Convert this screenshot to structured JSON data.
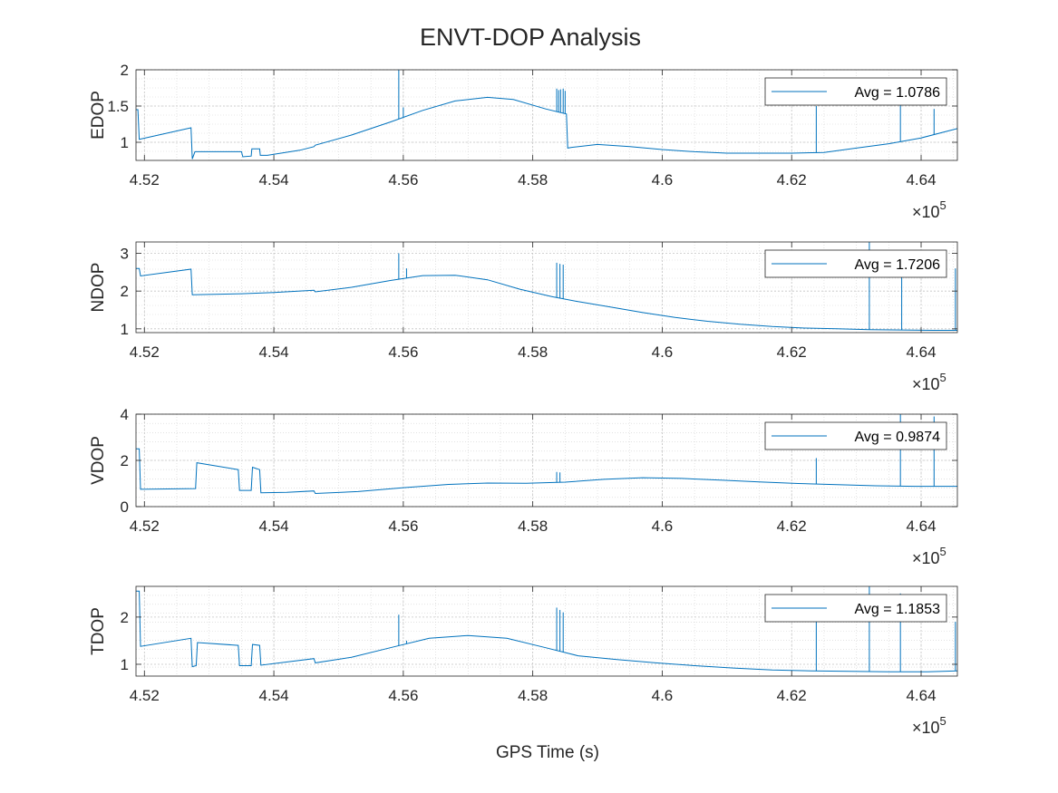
{
  "figure": {
    "title": "ENVT-DOP Analysis",
    "xlabel": "GPS Time (s)",
    "line_color": "#0072BD",
    "exponent_label": "×10",
    "exponent_power": "5"
  },
  "chart_data": [
    {
      "type": "line",
      "ylabel": "EDOP",
      "xlim": [
        451870,
        464560
      ],
      "ylim": [
        0.75,
        2.0
      ],
      "xticks": [
        452000,
        454000,
        456000,
        458000,
        460000,
        462000,
        464000
      ],
      "xtick_labels": [
        "4.52",
        "4.54",
        "4.56",
        "4.58",
        "4.6",
        "4.62",
        "4.64"
      ],
      "yticks": [
        1,
        1.5,
        2
      ],
      "ytick_labels": [
        "1",
        "1.5",
        "2"
      ],
      "grid": true,
      "legend_location": "top-right",
      "series": [
        {
          "name": "Avg = 1.0786"
        }
      ],
      "x": [
        451870,
        451900,
        451920,
        452720,
        452740,
        452780,
        453500,
        453520,
        453650,
        453660,
        453780,
        453790,
        453900,
        454400,
        454620,
        454640,
        455200,
        455800,
        456300,
        456800,
        457300,
        457700,
        458200,
        458520,
        458540,
        458600,
        459000,
        459500,
        460000,
        460500,
        461000,
        461500,
        462000,
        462500,
        463000,
        463500,
        464000,
        464560
      ],
      "y": [
        1.45,
        1.45,
        1.04,
        1.2,
        0.77,
        0.87,
        0.87,
        0.8,
        0.81,
        0.91,
        0.91,
        0.82,
        0.82,
        0.89,
        0.94,
        0.96,
        1.1,
        1.28,
        1.44,
        1.57,
        1.62,
        1.59,
        1.46,
        1.39,
        0.92,
        0.93,
        0.97,
        0.94,
        0.9,
        0.87,
        0.85,
        0.85,
        0.85,
        0.86,
        0.92,
        0.98,
        1.06,
        1.19
      ],
      "spikes": [
        {
          "x": 455930,
          "y": 2.05
        },
        {
          "x": 456000,
          "y": 1.48
        },
        {
          "x": 458370,
          "y": 1.74
        },
        {
          "x": 458400,
          "y": 1.72
        },
        {
          "x": 458430,
          "y": 1.73
        },
        {
          "x": 458470,
          "y": 1.74
        },
        {
          "x": 458500,
          "y": 1.71
        },
        {
          "x": 462380,
          "y": 1.5
        },
        {
          "x": 463680,
          "y": 1.52
        },
        {
          "x": 464200,
          "y": 1.46
        }
      ]
    },
    {
      "type": "line",
      "ylabel": "NDOP",
      "xlim": [
        451870,
        464560
      ],
      "ylim": [
        0.9,
        3.3
      ],
      "xticks": [
        452000,
        454000,
        456000,
        458000,
        460000,
        462000,
        464000
      ],
      "xtick_labels": [
        "4.52",
        "4.54",
        "4.56",
        "4.58",
        "4.6",
        "4.62",
        "4.64"
      ],
      "yticks": [
        1,
        2,
        3
      ],
      "ytick_labels": [
        "1",
        "2",
        "3"
      ],
      "grid": true,
      "legend_location": "top-right",
      "series": [
        {
          "name": "Avg = 1.7206"
        }
      ],
      "x": [
        451870,
        451920,
        451940,
        452720,
        452740,
        453500,
        454000,
        454620,
        454640,
        455200,
        455800,
        456300,
        456800,
        457300,
        457800,
        458300,
        458700,
        459200,
        459700,
        460200,
        460700,
        461200,
        461700,
        462200,
        462700,
        463200,
        463700,
        464200,
        464560
      ],
      "y": [
        2.6,
        2.6,
        2.4,
        2.58,
        1.9,
        1.93,
        1.96,
        2.02,
        1.98,
        2.1,
        2.28,
        2.41,
        2.42,
        2.3,
        2.05,
        1.85,
        1.72,
        1.58,
        1.43,
        1.3,
        1.2,
        1.12,
        1.06,
        1.02,
        1.0,
        0.98,
        0.97,
        0.96,
        0.96
      ],
      "spikes": [
        {
          "x": 455930,
          "y": 3.0
        },
        {
          "x": 456050,
          "y": 2.6
        },
        {
          "x": 458370,
          "y": 2.75
        },
        {
          "x": 458420,
          "y": 2.72
        },
        {
          "x": 458470,
          "y": 2.7
        },
        {
          "x": 463200,
          "y": 3.3
        },
        {
          "x": 463700,
          "y": 2.45
        },
        {
          "x": 464530,
          "y": 2.6
        }
      ]
    },
    {
      "type": "line",
      "ylabel": "VDOP",
      "xlim": [
        451870,
        464560
      ],
      "ylim": [
        0,
        4
      ],
      "xticks": [
        452000,
        454000,
        456000,
        458000,
        460000,
        462000,
        464000
      ],
      "xtick_labels": [
        "4.52",
        "4.54",
        "4.56",
        "4.58",
        "4.6",
        "4.62",
        "4.64"
      ],
      "yticks": [
        0,
        2,
        4
      ],
      "ytick_labels": [
        "0",
        "2",
        "4"
      ],
      "grid": true,
      "legend_location": "top-right",
      "series": [
        {
          "name": "Avg = 0.9874"
        }
      ],
      "x": [
        451870,
        451920,
        451940,
        452790,
        452810,
        453450,
        453470,
        453650,
        453670,
        453780,
        453800,
        454200,
        454620,
        454640,
        455300,
        456000,
        456700,
        457300,
        457900,
        458500,
        459100,
        459700,
        460300,
        460900,
        461500,
        462100,
        462700,
        463300,
        463900,
        464560
      ],
      "y": [
        2.5,
        2.5,
        0.75,
        0.78,
        1.9,
        1.6,
        0.7,
        0.7,
        1.7,
        1.6,
        0.6,
        0.62,
        0.68,
        0.57,
        0.65,
        0.82,
        0.96,
        1.02,
        1.01,
        1.06,
        1.18,
        1.25,
        1.22,
        1.15,
        1.07,
        1.0,
        0.95,
        0.9,
        0.88,
        0.88
      ],
      "spikes": [
        {
          "x": 458370,
          "y": 1.5
        },
        {
          "x": 458420,
          "y": 1.48
        },
        {
          "x": 462380,
          "y": 2.1
        },
        {
          "x": 463680,
          "y": 4.0
        },
        {
          "x": 464200,
          "y": 3.9
        }
      ]
    },
    {
      "type": "line",
      "ylabel": "TDOP",
      "xlim": [
        451870,
        464560
      ],
      "ylim": [
        0.75,
        2.65
      ],
      "xticks": [
        452000,
        454000,
        456000,
        458000,
        460000,
        462000,
        464000
      ],
      "xtick_labels": [
        "4.52",
        "4.54",
        "4.56",
        "4.58",
        "4.6",
        "4.62",
        "4.64"
      ],
      "yticks": [
        1,
        2
      ],
      "ytick_labels": [
        "1",
        "2"
      ],
      "grid": true,
      "legend_location": "top-right",
      "series": [
        {
          "name": "Avg = 1.1853"
        }
      ],
      "x": [
        451870,
        451920,
        451940,
        452720,
        452740,
        452800,
        452820,
        453450,
        453470,
        453650,
        453670,
        453780,
        453800,
        454620,
        454640,
        455200,
        455800,
        456400,
        457000,
        457600,
        458200,
        458700,
        459300,
        459900,
        460500,
        461100,
        461700,
        462300,
        462900,
        463500,
        464100,
        464560
      ],
      "y": [
        2.55,
        2.55,
        1.38,
        1.55,
        0.95,
        0.97,
        1.46,
        1.4,
        0.97,
        0.97,
        1.42,
        1.4,
        0.98,
        1.12,
        1.03,
        1.15,
        1.35,
        1.55,
        1.61,
        1.55,
        1.35,
        1.18,
        1.1,
        1.03,
        0.97,
        0.92,
        0.88,
        0.86,
        0.85,
        0.84,
        0.84,
        0.86
      ],
      "spikes": [
        {
          "x": 455930,
          "y": 2.05
        },
        {
          "x": 456050,
          "y": 1.5
        },
        {
          "x": 458370,
          "y": 2.2
        },
        {
          "x": 458420,
          "y": 2.15
        },
        {
          "x": 458470,
          "y": 2.1
        },
        {
          "x": 462380,
          "y": 2.0
        },
        {
          "x": 463200,
          "y": 2.65
        },
        {
          "x": 463680,
          "y": 2.5
        },
        {
          "x": 464530,
          "y": 1.9
        }
      ]
    }
  ]
}
